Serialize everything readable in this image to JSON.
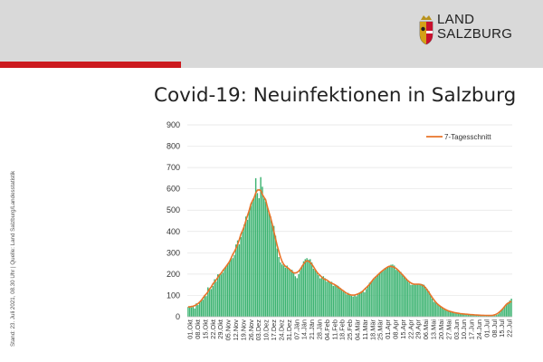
{
  "header": {
    "logo_line1": "LAND",
    "logo_line2": "SALZBURG",
    "colors": {
      "banner": "#d9d9d9",
      "accent_red": "#cc1a1f"
    }
  },
  "title": "Covid-19: Neuinfektionen in Salzburg",
  "side_note": "Stand: 23. Juli 2021, 08.30 Uhr | Quelle: Land Salzburg/Landesstatistik",
  "chart_data": {
    "type": "bar",
    "title": "Covid-19: Neuinfektionen in Salzburg",
    "xlabel": "",
    "ylabel": "",
    "ylim": [
      0,
      900
    ],
    "yticks": [
      "0",
      "100",
      "200",
      "300",
      "400",
      "500",
      "600",
      "700",
      "800",
      "900"
    ],
    "grid": true,
    "legend": {
      "position": "top-right",
      "line_label": "7-Tagesschnitt"
    },
    "colors": {
      "bars": "#3cb371",
      "line": "#e8742a",
      "grid": "#e3e3e3"
    },
    "tick_labels": [
      "01.Okt",
      "08.Okt",
      "15.Okt",
      "22.Okt",
      "29.Okt",
      "05.Nov",
      "12.Nov",
      "19.Nov",
      "26.Nov",
      "03.Dez",
      "10.Dez",
      "17.Dez",
      "24.Dez",
      "31.Dez",
      "07.Jän",
      "14.Jän",
      "21.Jän",
      "28.Jän",
      "04.Feb",
      "11.Feb",
      "18.Feb",
      "25.Feb",
      "04.Mär",
      "11.Mär",
      "18.Mär",
      "25.Mär",
      "01.Apr",
      "08.Apr",
      "15.Apr",
      "22.Apr",
      "29.Apr",
      "06.Mai",
      "13.Mai",
      "20.Mai",
      "27.Mai",
      "03.Jun",
      "10.Jun",
      "17.Jun",
      "24.Jun",
      "01.Jul",
      "08.Jul",
      "15.Jul",
      "22.Jul"
    ],
    "series": [
      {
        "name": "Neuinfektionen",
        "kind": "bar",
        "values": [
          46,
          50,
          44,
          48,
          39,
          63,
          55,
          70,
          75,
          80,
          102,
          97,
          138,
          128,
          130,
          144,
          176,
          165,
          199,
          200,
          199,
          207,
          227,
          235,
          250,
          260,
          270,
          275,
          290,
          339,
          358,
          340,
          374,
          400,
          433,
          470,
          455,
          501,
          520,
          545,
          560,
          650,
          580,
          556,
          655,
          610,
          555,
          540,
          520,
          490,
          470,
          430,
          426,
          380,
          320,
          280,
          255,
          245,
          240,
          230,
          240,
          224,
          221,
          220,
          205,
          190,
          181,
          200,
          220,
          240,
          260,
          270,
          275,
          268,
          270,
          255,
          225,
          220,
          210,
          195,
          180,
          182,
          190,
          181,
          165,
          165,
          162,
          164,
          145,
          149,
          149,
          145,
          135,
          125,
          118,
          115,
          105,
          112,
          104,
          98,
          95,
          100,
          96,
          106,
          115,
          120,
          120,
          115,
          130,
          145,
          160,
          165,
          172,
          180,
          190,
          200,
          205,
          210,
          215,
          227,
          227,
          235,
          240,
          244,
          245,
          240,
          220,
          220,
          215,
          210,
          195,
          190,
          180,
          170,
          160,
          150,
          150,
          151,
          150,
          155,
          155,
          155,
          153,
          150,
          140,
          130,
          120,
          100,
          85,
          70,
          68,
          61,
          55,
          48,
          41,
          36,
          32,
          30,
          26,
          24,
          22,
          20,
          18,
          17,
          16,
          15,
          14,
          13,
          12,
          12,
          11,
          10,
          10,
          9,
          8,
          8,
          8,
          7,
          7,
          7,
          6,
          6,
          6,
          6,
          6,
          6,
          7,
          8,
          12,
          20,
          30,
          40,
          50,
          60,
          68,
          76,
          85
        ]
      },
      {
        "name": "7-Tagesschnitt",
        "kind": "line",
        "values": [
          46,
          50,
          44,
          48,
          39,
          63,
          55,
          70,
          75,
          80,
          102,
          97,
          138,
          128,
          130,
          144,
          176,
          165,
          199,
          200,
          199,
          207,
          227,
          235,
          250,
          260,
          270,
          275,
          290,
          339,
          358,
          340,
          374,
          400,
          433,
          470,
          455,
          501,
          520,
          545,
          560,
          650,
          580,
          556,
          655,
          610,
          555,
          540,
          520,
          490,
          470,
          430,
          426,
          380,
          320,
          280,
          255,
          245,
          240,
          230,
          240,
          224,
          221,
          220,
          205,
          190,
          181,
          200,
          220,
          240,
          260,
          270,
          275,
          268,
          270,
          255,
          225,
          220,
          210,
          195,
          180,
          182,
          190,
          181,
          165,
          165,
          162,
          164,
          145,
          149,
          149,
          145,
          135,
          125,
          118,
          115,
          105,
          112,
          104,
          98,
          95,
          100,
          96,
          106,
          115,
          120,
          120,
          115,
          130,
          145,
          160,
          165,
          172,
          180,
          190,
          200,
          205,
          210,
          215,
          227,
          227,
          235,
          240,
          244,
          245,
          240,
          220,
          220,
          215,
          210,
          195,
          190,
          180,
          170,
          160,
          150,
          150,
          151,
          150,
          155,
          155,
          155,
          153,
          150,
          140,
          130,
          120,
          100,
          85,
          70,
          68,
          61,
          55,
          48,
          41,
          36,
          32,
          30,
          26,
          24,
          22,
          20,
          18,
          17,
          16,
          15,
          14,
          13,
          12,
          12,
          11,
          10,
          10,
          9,
          8,
          8,
          8,
          7,
          7,
          7,
          6,
          6,
          6,
          6,
          6,
          6,
          7,
          8,
          12,
          20,
          30,
          40,
          50,
          60,
          68,
          76,
          85
        ]
      }
    ]
  }
}
